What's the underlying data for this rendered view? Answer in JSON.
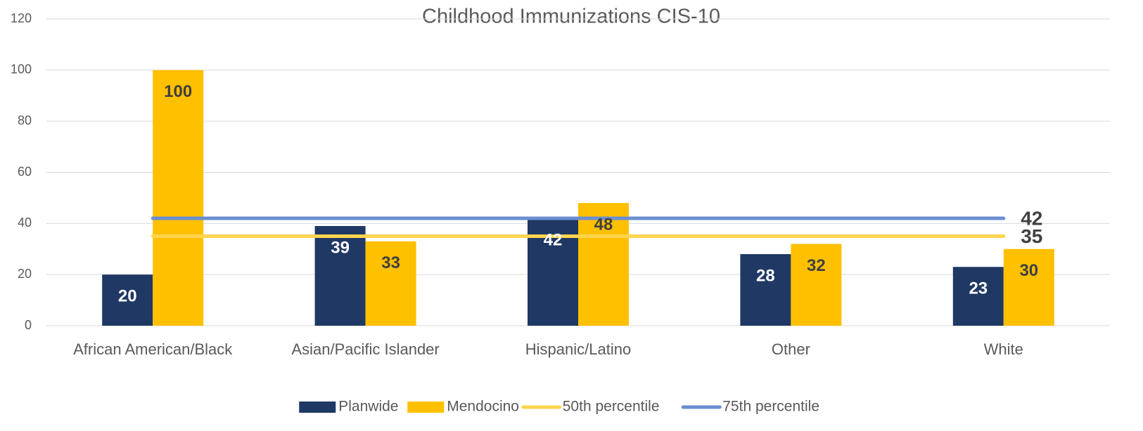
{
  "chart_data": {
    "type": "bar",
    "title": "Childhood Immunizations CIS-10",
    "categories": [
      "African American/Black",
      "Asian/Pacific Islander",
      "Hispanic/Latino",
      "Other",
      "White"
    ],
    "series": [
      {
        "name": "Planwide",
        "type": "bar",
        "color": "#1f3864",
        "values": [
          20,
          39,
          42,
          28,
          23
        ]
      },
      {
        "name": "Mendocino",
        "type": "bar",
        "color": "#ffc000",
        "values": [
          100,
          33,
          48,
          32,
          30
        ]
      },
      {
        "name": "50th percentile",
        "type": "line",
        "color": "#ffd54f",
        "values": [
          35,
          35,
          35,
          35,
          35
        ]
      },
      {
        "name": "75th percentile",
        "type": "line",
        "color": "#6a8fd1",
        "values": [
          42,
          42,
          42,
          42,
          42
        ]
      }
    ],
    "ylim": [
      0,
      120
    ],
    "yticks": [
      0,
      20,
      40,
      60,
      80,
      100,
      120
    ],
    "grid": true,
    "legend": "bottom"
  }
}
